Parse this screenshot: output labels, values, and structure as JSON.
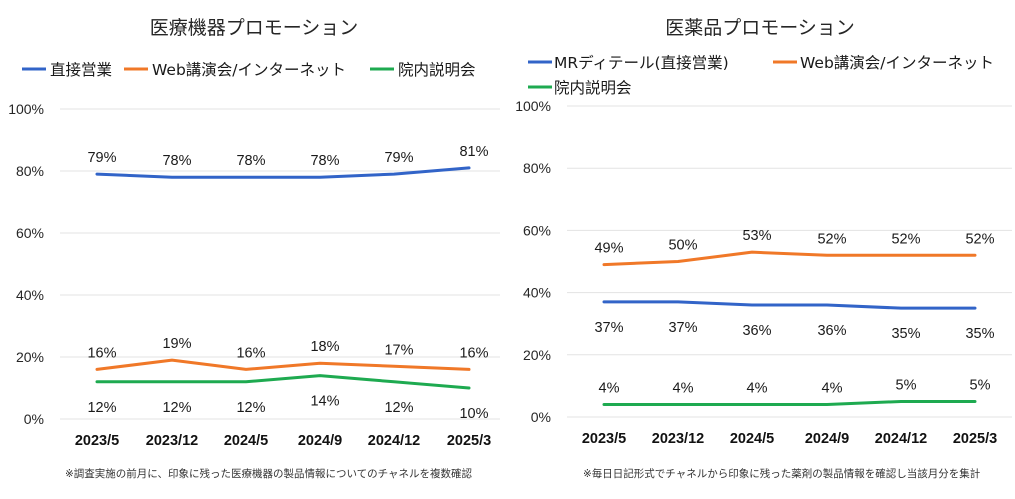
{
  "chart_data": [
    {
      "type": "line",
      "title": "医療機器プロモーション",
      "xlabel": "",
      "ylabel": "",
      "categories": [
        "2023/5",
        "2023/12",
        "2024/5",
        "2024/9",
        "2024/12",
        "2025/3"
      ],
      "ylim": [
        0,
        100
      ],
      "yticks": [
        "0%",
        "20%",
        "40%",
        "60%",
        "80%",
        "100%"
      ],
      "grid": true,
      "legend_position": "top",
      "series": [
        {
          "name": "直接営業",
          "color": "#3264c8",
          "values": [
            79,
            78,
            78,
            78,
            79,
            81
          ],
          "labels": [
            "79%",
            "78%",
            "78%",
            "78%",
            "79%",
            "81%"
          ],
          "label_pos": "above"
        },
        {
          "name": "Web講演会/インターネット",
          "color": "#f07828",
          "values": [
            16,
            19,
            16,
            18,
            17,
            16
          ],
          "labels": [
            "16%",
            "19%",
            "16%",
            "18%",
            "17%",
            "16%"
          ],
          "label_pos": "above"
        },
        {
          "name": "院内説明会",
          "color": "#1eaa50",
          "values": [
            12,
            12,
            12,
            14,
            12,
            10
          ],
          "labels": [
            "12%",
            "12%",
            "12%",
            "14%",
            "12%",
            "10%"
          ],
          "label_pos": "below"
        }
      ],
      "note": "※調査実施の前月に、印象に残った医療機器の製品情報についてのチャネルを複数確認"
    },
    {
      "type": "line",
      "title": "医薬品プロモーション",
      "xlabel": "",
      "ylabel": "",
      "categories": [
        "2023/5",
        "2023/12",
        "2024/5",
        "2024/9",
        "2024/12",
        "2025/3"
      ],
      "ylim": [
        0,
        100
      ],
      "yticks": [
        "0%",
        "20%",
        "40%",
        "60%",
        "80%",
        "100%"
      ],
      "grid": true,
      "legend_position": "top",
      "series": [
        {
          "name": "MRディテール(直接営業)",
          "color": "#3264c8",
          "values": [
            37,
            37,
            36,
            36,
            35,
            35
          ],
          "labels": [
            "37%",
            "37%",
            "36%",
            "36%",
            "35%",
            "35%"
          ],
          "label_pos": "below"
        },
        {
          "name": "Web講演会/インターネット",
          "color": "#f07828",
          "values": [
            49,
            50,
            53,
            52,
            52,
            52
          ],
          "labels": [
            "49%",
            "50%",
            "53%",
            "52%",
            "52%",
            "52%"
          ],
          "label_pos": "above"
        },
        {
          "name": "院内説明会",
          "color": "#1eaa50",
          "values": [
            4,
            4,
            4,
            4,
            5,
            5
          ],
          "labels": [
            "4%",
            "4%",
            "4%",
            "4%",
            "5%",
            "5%"
          ],
          "label_pos": "above"
        }
      ],
      "note": "※毎日日記形式でチャネルから印象に残った薬剤の製品情報を確認し当該月分を集計"
    }
  ]
}
